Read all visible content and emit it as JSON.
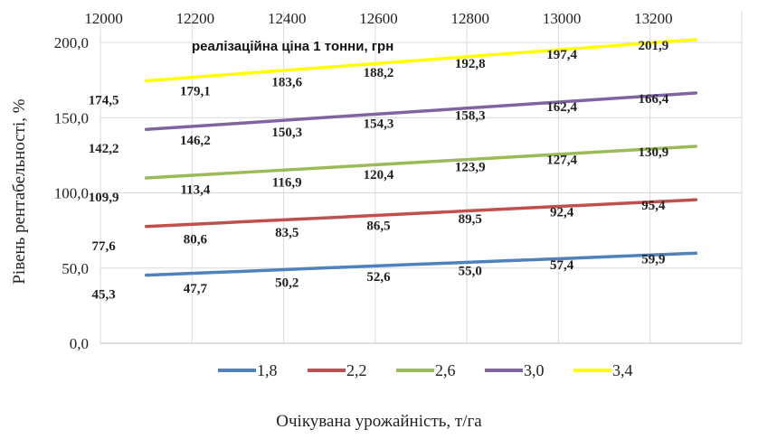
{
  "chart_data": {
    "type": "line",
    "title": "",
    "annotation": "реалізаційна ціна 1 тонни, грн",
    "xlabel": "Очікувана урожайність, т/га",
    "ylabel": "Рівень рентабельності, %",
    "categories": [
      "12000",
      "12200",
      "12400",
      "12600",
      "12800",
      "13000",
      "13200"
    ],
    "ylim": [
      0,
      200
    ],
    "yticks": [
      "0,0",
      "50,0",
      "100,0",
      "150,0",
      "200,0"
    ],
    "grid": true,
    "legend_position": "bottom",
    "series": [
      {
        "name": "1,8",
        "color": "#4f81bd",
        "values": [
          45.3,
          47.7,
          50.2,
          52.6,
          55.0,
          57.4,
          59.9
        ],
        "labels": [
          "45,3",
          "47,7",
          "50,2",
          "52,6",
          "55,0",
          "57,4",
          "59,9"
        ]
      },
      {
        "name": "2,2",
        "color": "#c0504d",
        "values": [
          77.6,
          80.6,
          83.5,
          86.5,
          89.5,
          92.4,
          95.4
        ],
        "labels": [
          "77,6",
          "80,6",
          "83,5",
          "86,5",
          "89,5",
          "92,4",
          "95,4"
        ]
      },
      {
        "name": "2,6",
        "color": "#9bbb59",
        "values": [
          109.9,
          113.4,
          116.9,
          120.4,
          123.9,
          127.4,
          130.9
        ],
        "labels": [
          "109,9",
          "113,4",
          "116,9",
          "120,4",
          "123,9",
          "127,4",
          "130,9"
        ]
      },
      {
        "name": "3,0",
        "color": "#8064a2",
        "values": [
          142.2,
          146.2,
          150.3,
          154.3,
          158.3,
          162.4,
          166.4
        ],
        "labels": [
          "142,2",
          "146,2",
          "150,3",
          "154,3",
          "158,3",
          "162,4",
          "166,4"
        ]
      },
      {
        "name": "3,4",
        "color": "#ffff00",
        "values": [
          174.5,
          179.1,
          183.6,
          188.2,
          192.8,
          197.4,
          201.9
        ],
        "labels": [
          "174,5",
          "179,1",
          "183,6",
          "188,2",
          "192,8",
          "197,4",
          "201,9"
        ]
      }
    ]
  }
}
